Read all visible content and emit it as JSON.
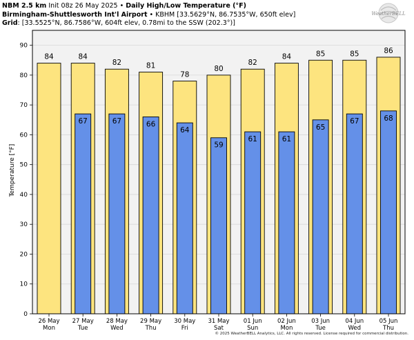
{
  "header": {
    "line1_bold_a": "NBM 2.5 km",
    "line1_mid": " Init 08z 26 May 2025 • ",
    "line1_bold_b": "Daily High/Low Temperature (°F)",
    "line2_bold": "Birmingham-Shuttlesworth Int'l Airport",
    "line2_rest": " • KBHM [33.5629°N, 86.7535°W, 650ft elev]",
    "line3_bold": "Grid",
    "line3_rest": ": [33.5525°N, 86.7586°W, 604ft elev, 0.78mi to the SSW (202.3°)]"
  },
  "logo": {
    "text": "WeatherBELL"
  },
  "copyright": "© 2025 WeatherBELL Analytics, LLC. All rights reserved. License required for commercial distribution.",
  "colors": {
    "high": "#fde47f",
    "low": "#6490e8",
    "plot_bg": "#f2f2f2"
  },
  "chart_data": {
    "type": "bar",
    "categories": [
      [
        "26 May",
        "Mon"
      ],
      [
        "27 May",
        "Tue"
      ],
      [
        "28 May",
        "Wed"
      ],
      [
        "29 May",
        "Thu"
      ],
      [
        "30 May",
        "Fri"
      ],
      [
        "31 May",
        "Sat"
      ],
      [
        "01 Jun",
        "Sun"
      ],
      [
        "02 Jun",
        "Mon"
      ],
      [
        "03 Jun",
        "Tue"
      ],
      [
        "04 Jun",
        "Wed"
      ],
      [
        "05 Jun",
        "Thu"
      ]
    ],
    "series": [
      {
        "values": [
          84,
          84,
          82,
          81,
          78,
          80,
          82,
          84,
          85,
          85,
          86
        ],
        "labels": [
          "84",
          "84",
          "82",
          "81",
          "78",
          "80",
          "82",
          "84",
          "85",
          "85",
          "86"
        ]
      },
      {
        "values": [
          null,
          67,
          67,
          66,
          64,
          59,
          61,
          61,
          65,
          67,
          68
        ],
        "labels": [
          "",
          "67",
          "67",
          "66",
          "64",
          "59",
          "61",
          "61",
          "65",
          "67",
          "68"
        ]
      }
    ],
    "ylabel": "Temperature [°F]",
    "ylim": [
      0,
      95
    ],
    "yticks": [
      0,
      10,
      20,
      30,
      40,
      50,
      60,
      70,
      80,
      90
    ],
    "grid": true
  }
}
